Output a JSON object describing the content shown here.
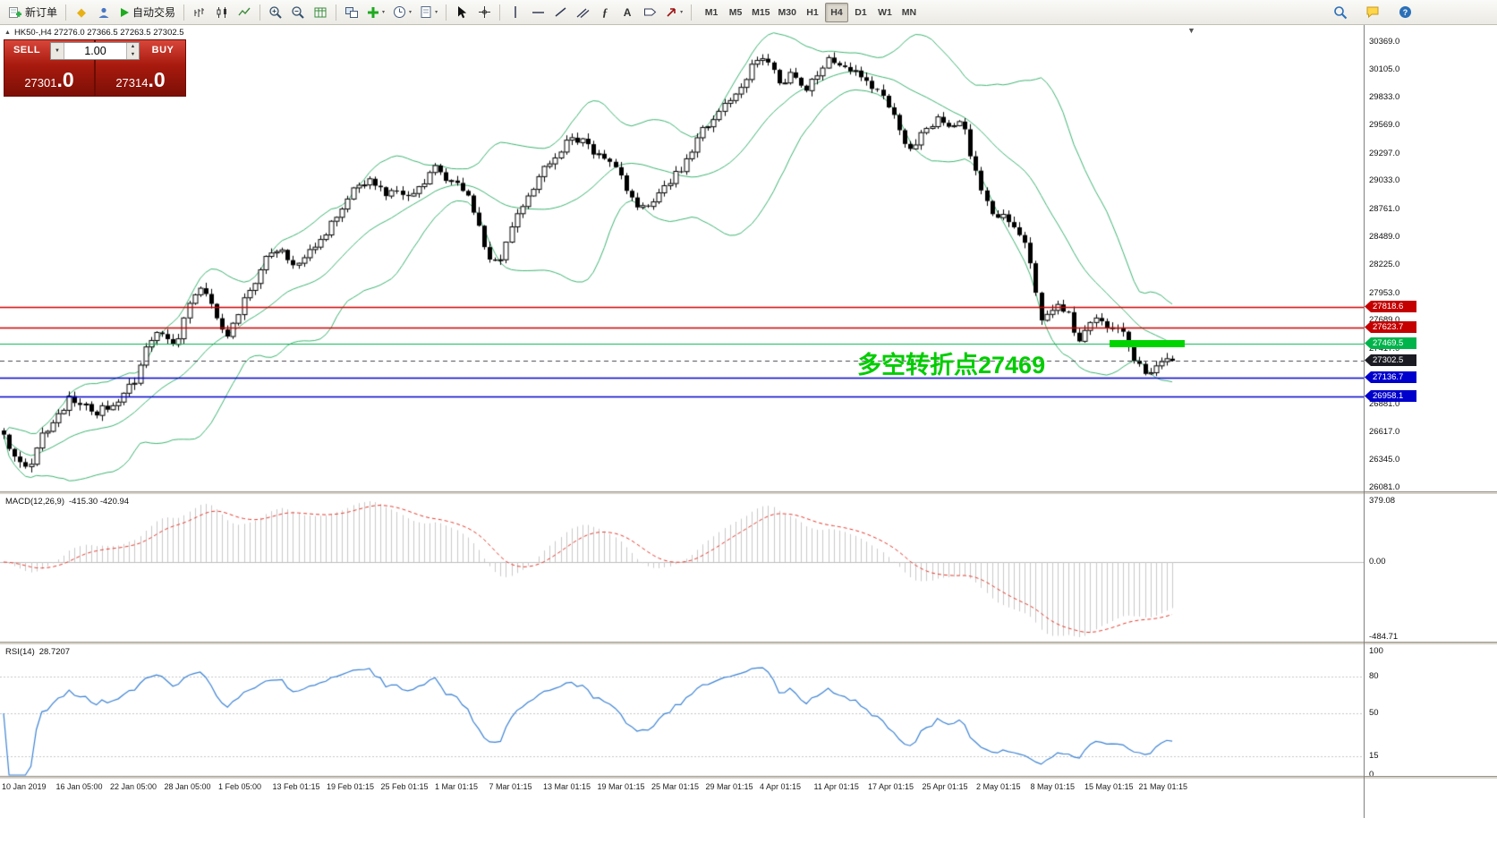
{
  "toolbar": {
    "new_order": "新订单",
    "autotrading": "自动交易",
    "timeframes": [
      "M1",
      "M5",
      "M15",
      "M30",
      "H1",
      "H4",
      "D1",
      "W1",
      "MN"
    ],
    "active_timeframe": "H4"
  },
  "markers": {
    "collapse": "▲",
    "scroll": "▼",
    "volume_dropdown": "▼",
    "spin_up": "▲",
    "spin_down": "▼"
  },
  "chart": {
    "header": "HK50-,H4  27276.0 27366.5 27263.5 27302.5",
    "symbol": "HK50-",
    "period": "H4",
    "open": "27276.0",
    "high": "27366.5",
    "low": "27263.5",
    "close": "27302.5"
  },
  "trade_panel": {
    "sell_label": "SELL",
    "buy_label": "BUY",
    "volume": "1.00",
    "sell_price_base": "27301",
    "sell_price_big": ".0",
    "buy_price_base": "27314",
    "buy_price_big": ".0"
  },
  "annotation": {
    "text": "多空转折点27469",
    "value": 27469
  },
  "levels": [
    {
      "price": 27818.6,
      "label": "27818.6",
      "line": "#cc0000",
      "badge": "#c40000",
      "width": 1.6
    },
    {
      "price": 27623.7,
      "label": "27623.7",
      "line": "#cc0000",
      "badge": "#c40000",
      "width": 1.6
    },
    {
      "price": 27469.5,
      "label": "27469.5",
      "line": "#00b44c",
      "badge": "#00b44c",
      "width": 1.2
    },
    {
      "price": 27302.5,
      "label": "27302.5",
      "line": "#44444e",
      "badge": "#1b1b24",
      "width": 1,
      "dash": true
    },
    {
      "price": 27136.7,
      "label": "27136.7",
      "line": "#0000cc",
      "badge": "#0000cc",
      "width": 1.6
    },
    {
      "price": 26958.1,
      "label": "26958.1",
      "line": "#0000cc",
      "badge": "#0000cc",
      "width": 1.6
    }
  ],
  "y_axis": [
    "30369.0",
    "30105.0",
    "29833.0",
    "29569.0",
    "29297.0",
    "29033.0",
    "28761.0",
    "28489.0",
    "28225.0",
    "27953.0",
    "27689.0",
    "27417.0",
    "27145.0",
    "26881.0",
    "26617.0",
    "26345.0",
    "26081.0"
  ],
  "x_axis": [
    "10 Jan 2019",
    "16 Jan 05:00",
    "22 Jan 05:00",
    "28 Jan 05:00",
    "1 Feb 05:00",
    "13 Feb 01:15",
    "19 Feb 01:15",
    "25 Feb 01:15",
    "1 Mar 01:15",
    "7 Mar 01:15",
    "13 Mar 01:15",
    "19 Mar 01:15",
    "25 Mar 01:15",
    "29 Mar 01:15",
    "4 Apr 01:15",
    "11 Apr 01:15",
    "17 Apr 01:15",
    "25 Apr 01:15",
    "2 May 01:15",
    "8 May 01:15",
    "15 May 01:15",
    "21 May 01:15"
  ],
  "macd": {
    "name": "MACD(12,26,9)",
    "values": "-415.30 -420.94",
    "scale": [
      "379.08",
      "0.00",
      "-484.71"
    ]
  },
  "rsi": {
    "name": "RSI(14)",
    "value": "28.7207",
    "scale": [
      "100",
      "80",
      "50",
      "15",
      "0"
    ]
  },
  "colors": {
    "bull": "#ffffff",
    "bear": "#000000",
    "wick": "#000000",
    "bollinger": "#3cb371",
    "macd_hist": "#c9c9c9",
    "macd_signal": "#e23a2e",
    "rsi": "#3b82d4",
    "annotation": "#00cc00",
    "highlight_green": "#00d400",
    "accent_red": "#c40000",
    "accent_green": "#00b44c",
    "accent_blue": "#0000cc",
    "sell_buy_button": "#c0271b",
    "panel_maroon": "#6b0c04"
  },
  "chart_data": {
    "type": "candlestick",
    "symbol": "HK50-",
    "timeframe": "H4",
    "bars": 215,
    "price_range": [
      26081,
      30369
    ],
    "x_range_labels": [
      "10 Jan 2019",
      "21 May 01:15"
    ],
    "price_path": [
      26550,
      26400,
      26250,
      26600,
      26750,
      26950,
      26900,
      26780,
      26880,
      26950,
      27100,
      27500,
      27600,
      27400,
      27800,
      28050,
      27800,
      27500,
      27800,
      28050,
      28300,
      28380,
      28180,
      28330,
      28480,
      28620,
      28820,
      29000,
      29060,
      28900,
      28950,
      28870,
      29030,
      29220,
      29000,
      28950,
      28680,
      28270,
      28300,
      28700,
      28870,
      29100,
      29280,
      29440,
      29420,
      29320,
      29280,
      29050,
      28800,
      28800,
      28950,
      29050,
      29250,
      29500,
      29630,
      29770,
      29950,
      30130,
      30240,
      29960,
      30050,
      29910,
      30090,
      30200,
      30150,
      30100,
      29960,
      29860,
      29620,
      29320,
      29480,
      29650,
      29560,
      29640,
      29100,
      28760,
      28700,
      28560,
      28360,
      27720,
      27830,
      27760,
      27480,
      27690,
      27660,
      27620,
      27360,
      27180,
      27302,
      27302
    ],
    "last_close": 27302.5,
    "horizontal_levels": [
      27818.6,
      27623.7,
      27469.5,
      27302.5,
      27136.7,
      26958.1
    ],
    "indicators": {
      "bollinger_bands": {
        "period": 20,
        "deviation": 2
      },
      "macd": {
        "fast": 12,
        "slow": 26,
        "signal": 9,
        "current": [
          -415.3,
          -420.94
        ],
        "display_range": [
          -484.71,
          379.08
        ]
      },
      "rsi": {
        "period": 14,
        "current": 28.7207,
        "levels": [
          80,
          50,
          15
        ]
      }
    }
  }
}
